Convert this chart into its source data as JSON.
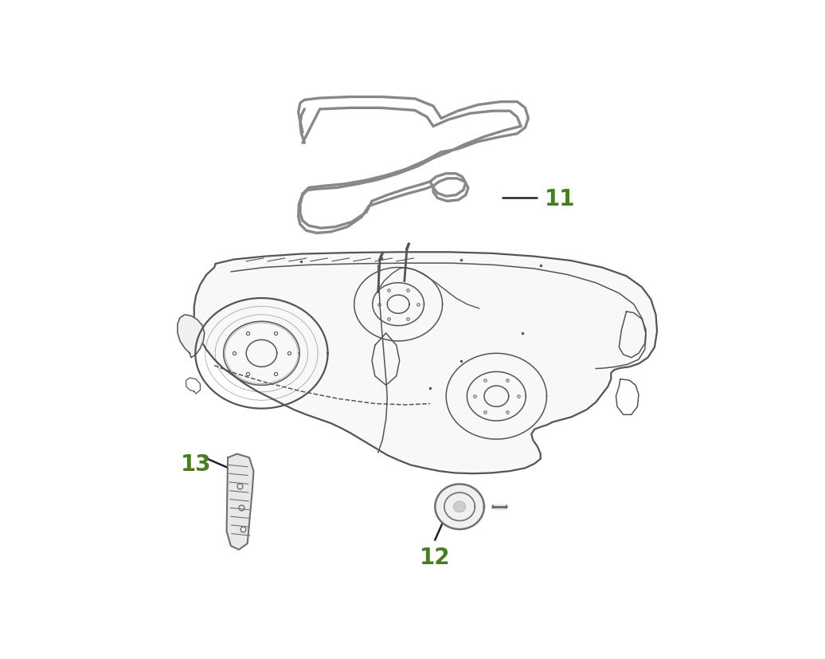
{
  "background_color": "#ffffff",
  "label_color": "#4a7c23",
  "line_color": "#444444",
  "belt_color": "#888888",
  "deck_color": "#555555",
  "figsize": [
    10.36,
    8.28
  ],
  "dpi": 100,
  "label_11": "11",
  "label_12": "12",
  "label_13": "13",
  "label_fontsize": 20,
  "callout_lw": 1.8,
  "belt_lw": 2.4,
  "deck_lw_outer": 1.6,
  "deck_lw_inner": 1.1
}
